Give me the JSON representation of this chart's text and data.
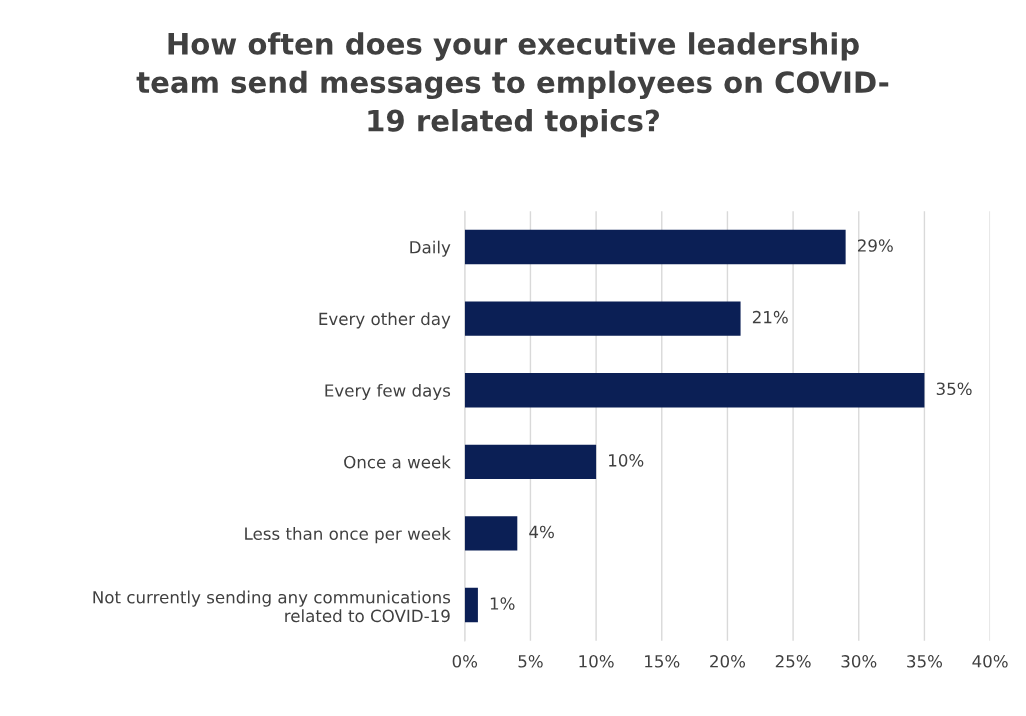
{
  "chart_data": {
    "type": "bar",
    "orientation": "horizontal",
    "title": "How often does your executive leadership\nteam send messages to employees on COVID-\n19 related topics?",
    "categories": [
      "Daily",
      "Every other day",
      "Every few days",
      "Once a week",
      "Less than once per week",
      "Not currently sending any communications\nrelated to COVID-19"
    ],
    "values": [
      29,
      21,
      35,
      10,
      4,
      1
    ],
    "value_labels": [
      "29%",
      "21%",
      "35%",
      "10%",
      "4%",
      "1%"
    ],
    "color": "#0b1f55",
    "xlim": [
      0,
      40
    ],
    "xticks": [
      {
        "value": 0,
        "label": "0%"
      },
      {
        "value": 5,
        "label": "5%"
      },
      {
        "value": 10,
        "label": "10%"
      },
      {
        "value": 15,
        "label": "15%"
      },
      {
        "value": 20,
        "label": "20%"
      },
      {
        "value": 25,
        "label": "25%"
      },
      {
        "value": 30,
        "label": "30%"
      },
      {
        "value": 35,
        "label": "35%"
      },
      {
        "value": 40,
        "label": "40%"
      }
    ],
    "grid": "x",
    "legend": false
  }
}
